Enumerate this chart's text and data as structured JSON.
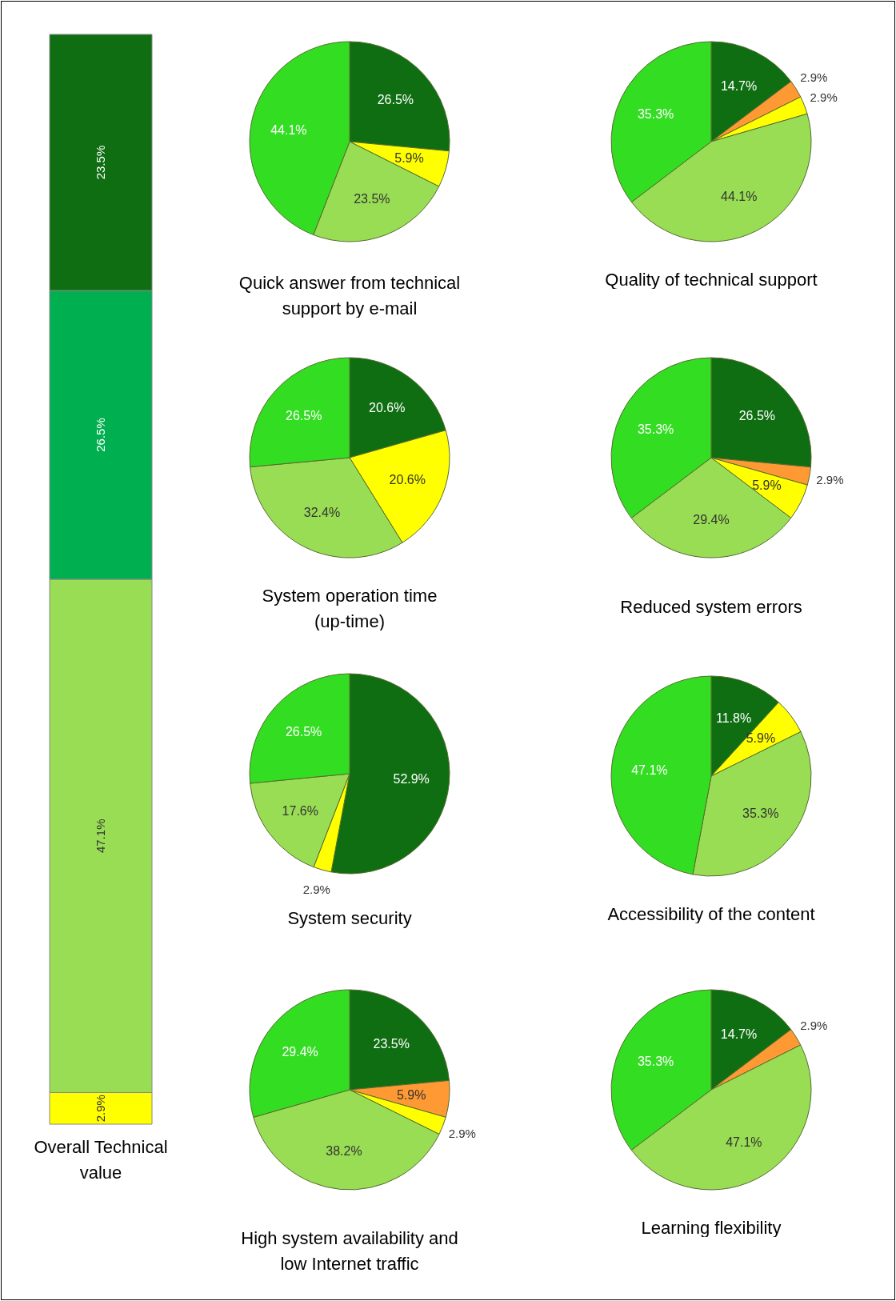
{
  "chart_data": [
    {
      "type": "bar",
      "title": "Overall Technical value",
      "stacked": true,
      "tick_labels": false,
      "categories": [
        null
      ],
      "series": [
        {
          "color": "#ffff00",
          "values": [
            2.9
          ],
          "value_labels": [
            "2.9%"
          ]
        },
        {
          "color": "#99dd55",
          "values": [
            47.1
          ],
          "value_labels": [
            "47.1%"
          ]
        },
        {
          "color": "#00b050",
          "values": [
            26.5
          ],
          "value_labels": [
            "26.5%"
          ]
        },
        {
          "color": "#0f6e12",
          "values": [
            23.5
          ],
          "value_labels": [
            "23.5%"
          ]
        }
      ]
    },
    {
      "type": "pie",
      "title": "Quick answer from technical support by e-mail",
      "categories": [
        null,
        null,
        null,
        null
      ],
      "values": [
        26.5,
        5.9,
        23.5,
        44.1
      ],
      "colors": [
        "#0f6e12",
        "#ffff00",
        "#99dd55",
        "#33dd22"
      ],
      "value_labels": [
        "26.5%",
        "5.9%",
        "23.5%",
        "44.1%"
      ]
    },
    {
      "type": "pie",
      "title": "Quality of technical support",
      "categories": [
        null,
        null,
        null,
        null,
        null
      ],
      "values": [
        14.7,
        2.9,
        2.9,
        44.1,
        35.3
      ],
      "colors": [
        "#0f6e12",
        "#ff9933",
        "#ffff00",
        "#99dd55",
        "#33dd22"
      ],
      "value_labels": [
        "14.7%",
        "2.9%",
        "2.9%",
        "44.1%",
        "35.3%"
      ]
    },
    {
      "type": "pie",
      "title": "System operation time (up-time)",
      "categories": [
        null,
        null,
        null,
        null
      ],
      "values": [
        20.6,
        20.6,
        32.4,
        26.5
      ],
      "colors": [
        "#0f6e12",
        "#ffff00",
        "#99dd55",
        "#33dd22"
      ],
      "value_labels": [
        "20.6%",
        "20.6%",
        "32.4%",
        "26.5%"
      ]
    },
    {
      "type": "pie",
      "title": "Reduced system errors",
      "categories": [
        null,
        null,
        null,
        null,
        null
      ],
      "values": [
        26.5,
        2.9,
        5.9,
        29.4,
        35.3
      ],
      "colors": [
        "#0f6e12",
        "#ff9933",
        "#ffff00",
        "#99dd55",
        "#33dd22"
      ],
      "value_labels": [
        "26.5%",
        "2.9%",
        "5.9%",
        "29.4%",
        "35.3%"
      ]
    },
    {
      "type": "pie",
      "title": "System security",
      "categories": [
        null,
        null,
        null,
        null
      ],
      "values": [
        52.9,
        2.9,
        17.6,
        26.5
      ],
      "colors": [
        "#0f6e12",
        "#ffff00",
        "#99dd55",
        "#33dd22"
      ],
      "value_labels": [
        "52.9%",
        "2.9%",
        "17.6%",
        "26.5%"
      ]
    },
    {
      "type": "pie",
      "title": "Accessibility of the content",
      "categories": [
        null,
        null,
        null,
        null
      ],
      "values": [
        11.8,
        5.9,
        35.3,
        47.1
      ],
      "colors": [
        "#0f6e12",
        "#ffff00",
        "#99dd55",
        "#33dd22"
      ],
      "value_labels": [
        "11.8%",
        "5.9%",
        "35.3%",
        "47.1%"
      ]
    },
    {
      "type": "pie",
      "title": "High system availability and low Internet traffic",
      "categories": [
        null,
        null,
        null,
        null,
        null
      ],
      "values": [
        23.5,
        5.9,
        2.9,
        38.2,
        29.4
      ],
      "colors": [
        "#0f6e12",
        "#ff9933",
        "#ffff00",
        "#99dd55",
        "#33dd22"
      ],
      "value_labels": [
        "23.5%",
        "5.9%",
        "2.9%",
        "38.2%",
        "29.4%"
      ]
    },
    {
      "type": "pie",
      "title": "Learning flexibility",
      "categories": [
        null,
        null,
        null,
        null
      ],
      "values": [
        14.7,
        2.9,
        47.1,
        35.3
      ],
      "colors": [
        "#0f6e12",
        "#ff9933",
        "#99dd55",
        "#33dd22"
      ],
      "value_labels": [
        "14.7%",
        "2.9%",
        "47.1%",
        "35.3%"
      ]
    }
  ]
}
